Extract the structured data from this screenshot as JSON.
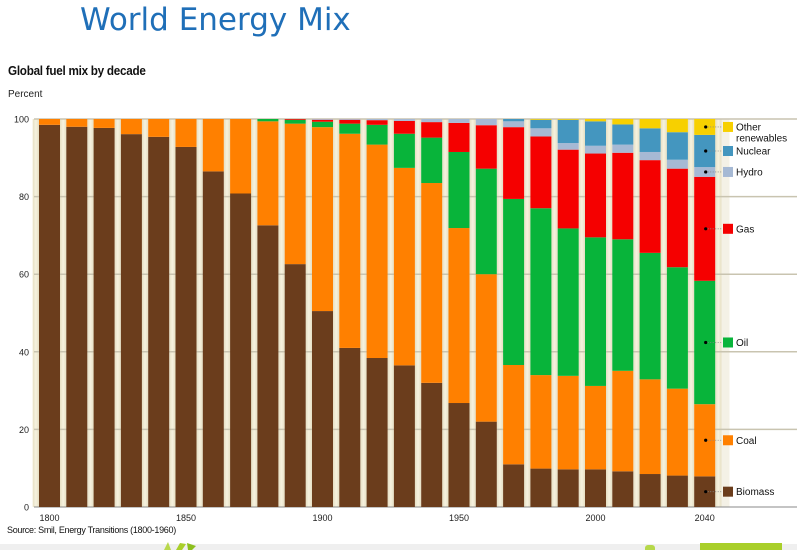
{
  "slide": {
    "title": "World Energy Mix"
  },
  "chart_data": {
    "type": "bar",
    "stacked": true,
    "title": "Global fuel mix by decade",
    "ylabel": "Percent",
    "xlabel": "",
    "ylim": [
      0,
      100
    ],
    "yticks": [
      0,
      20,
      40,
      60,
      80,
      100
    ],
    "xticks": [
      "1800",
      "1850",
      "1900",
      "1950",
      "2000",
      "2040"
    ],
    "grid": true,
    "legend_position": "right",
    "source": "Source: Smil, Energy Transitions (1800-1960)",
    "categories": [
      "1800",
      "1810",
      "1820",
      "1830",
      "1840",
      "1850",
      "1860",
      "1870",
      "1880",
      "1890",
      "1900",
      "1910",
      "1920",
      "1930",
      "1940",
      "1950",
      "1960",
      "1970",
      "1980",
      "1990",
      "2000",
      "2010",
      "2020",
      "2030",
      "2040"
    ],
    "series": [
      {
        "name": "Biomass",
        "color": "#6b3d1c",
        "values": [
          98.5,
          98,
          97.7,
          96.1,
          95.4,
          92.8,
          86.5,
          80.8,
          72.6,
          62.6,
          50.5,
          41,
          38.4,
          36.5,
          32,
          26.8,
          22,
          11,
          9.9,
          9.7,
          9.7,
          9.2,
          8.5,
          8.1,
          7.9
        ]
      },
      {
        "name": "Coal",
        "color": "#ff8000",
        "values": [
          1.5,
          2,
          2.3,
          3.9,
          4.6,
          7.2,
          13.5,
          19.2,
          26.8,
          36.2,
          47.4,
          55.2,
          55,
          50.9,
          51.5,
          45.1,
          38,
          25.6,
          24.1,
          24.1,
          21.5,
          25.9,
          24.4,
          22.4,
          18.6
        ]
      },
      {
        "name": "Oil",
        "color": "#08b43a",
        "values": [
          0,
          0,
          0,
          0,
          0,
          0,
          0,
          0,
          0.6,
          1,
          1.4,
          2.6,
          5.1,
          8.8,
          11.7,
          19.6,
          27.2,
          42.8,
          43,
          38,
          38.3,
          33.9,
          32.6,
          31.3,
          31.8
        ]
      },
      {
        "name": "Gas",
        "color": "#f50000",
        "values": [
          0,
          0,
          0,
          0,
          0,
          0,
          0,
          0,
          0,
          0.2,
          0.5,
          1,
          1.2,
          3.3,
          4,
          7.5,
          11.2,
          18.5,
          18.5,
          20.3,
          21.6,
          22.3,
          23.9,
          25.4,
          26.8
        ]
      },
      {
        "name": "Hydro",
        "color": "#a6b9d4",
        "values": [
          0,
          0,
          0,
          0,
          0,
          0,
          0,
          0,
          0,
          0,
          0.2,
          0.2,
          0.3,
          0.5,
          0.8,
          1,
          1.6,
          1.5,
          2.1,
          1.7,
          2,
          2.1,
          2.1,
          2.3,
          2.5
        ]
      },
      {
        "name": "Nuclear",
        "color": "#4496bf",
        "values": [
          0,
          0,
          0,
          0,
          0,
          0,
          0,
          0,
          0,
          0,
          0,
          0,
          0,
          0,
          0,
          0,
          0,
          0.6,
          2.2,
          6,
          6.3,
          5.2,
          6.1,
          7.1,
          8.3
        ]
      },
      {
        "name": "Other renewables",
        "color": "#f7d000",
        "values": [
          0,
          0,
          0,
          0,
          0,
          0,
          0,
          0,
          0,
          0,
          0,
          0,
          0,
          0,
          0,
          0,
          0,
          0,
          0.2,
          0.2,
          0.6,
          1.4,
          2.4,
          3.4,
          4.1
        ]
      }
    ],
    "legend": [
      {
        "label_lines": [
          "Other",
          "renewables"
        ],
        "series": "Other renewables"
      },
      {
        "label_lines": [
          "Nuclear"
        ],
        "series": "Nuclear"
      },
      {
        "label_lines": [
          "Hydro"
        ],
        "series": "Hydro"
      },
      {
        "label_lines": [
          "Gas"
        ],
        "series": "Gas"
      },
      {
        "label_lines": [
          "Oil"
        ],
        "series": "Oil"
      },
      {
        "label_lines": [
          "Coal"
        ],
        "series": "Coal"
      },
      {
        "label_lines": [
          "Biomass"
        ],
        "series": "Biomass"
      }
    ]
  }
}
